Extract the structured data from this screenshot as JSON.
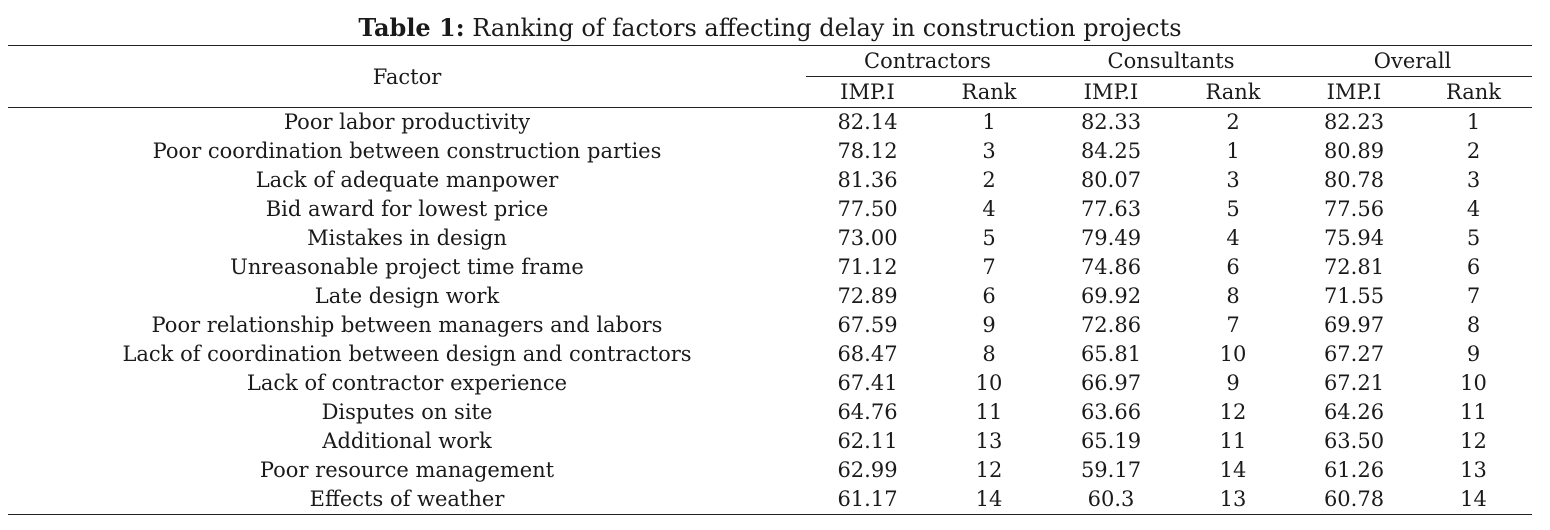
{
  "caption": {
    "label": "Table 1:",
    "text": "Ranking of factors affecting delay in construction projects"
  },
  "header": {
    "factor": "Factor",
    "groups": [
      "Contractors",
      "Consultants",
      "Overall"
    ],
    "sub": [
      "IMP.I",
      "Rank",
      "IMP.I",
      "Rank",
      "IMP.I",
      "Rank"
    ]
  },
  "rows": [
    [
      "Poor labor productivity",
      "82.14",
      "1",
      "82.33",
      "2",
      "82.23",
      "1"
    ],
    [
      "Poor coordination between construction parties",
      "78.12",
      "3",
      "84.25",
      "1",
      "80.89",
      "2"
    ],
    [
      "Lack of adequate manpower",
      "81.36",
      "2",
      "80.07",
      "3",
      "80.78",
      "3"
    ],
    [
      "Bid award for lowest price",
      "77.50",
      "4",
      "77.63",
      "5",
      "77.56",
      "4"
    ],
    [
      "Mistakes in design",
      "73.00",
      "5",
      "79.49",
      "4",
      "75.94",
      "5"
    ],
    [
      "Unreasonable project time frame",
      "71.12",
      "7",
      "74.86",
      "6",
      "72.81",
      "6"
    ],
    [
      "Late design work",
      "72.89",
      "6",
      "69.92",
      "8",
      "71.55",
      "7"
    ],
    [
      "Poor relationship between managers and labors",
      "67.59",
      "9",
      "72.86",
      "7",
      "69.97",
      "8"
    ],
    [
      "Lack of coordination between design and contractors",
      "68.47",
      "8",
      "65.81",
      "10",
      "67.27",
      "9"
    ],
    [
      "Lack of contractor experience",
      "67.41",
      "10",
      "66.97",
      "9",
      "67.21",
      "10"
    ],
    [
      "Disputes on site",
      "64.76",
      "11",
      "63.66",
      "12",
      "64.26",
      "11"
    ],
    [
      "Additional work",
      "62.11",
      "13",
      "65.19",
      "11",
      "63.50",
      "12"
    ],
    [
      "Poor resource management",
      "62.99",
      "12",
      "59.17",
      "14",
      "61.26",
      "13"
    ],
    [
      "Effects of weather",
      "61.17",
      "14",
      "60.3",
      "13",
      "60.78",
      "14"
    ]
  ]
}
